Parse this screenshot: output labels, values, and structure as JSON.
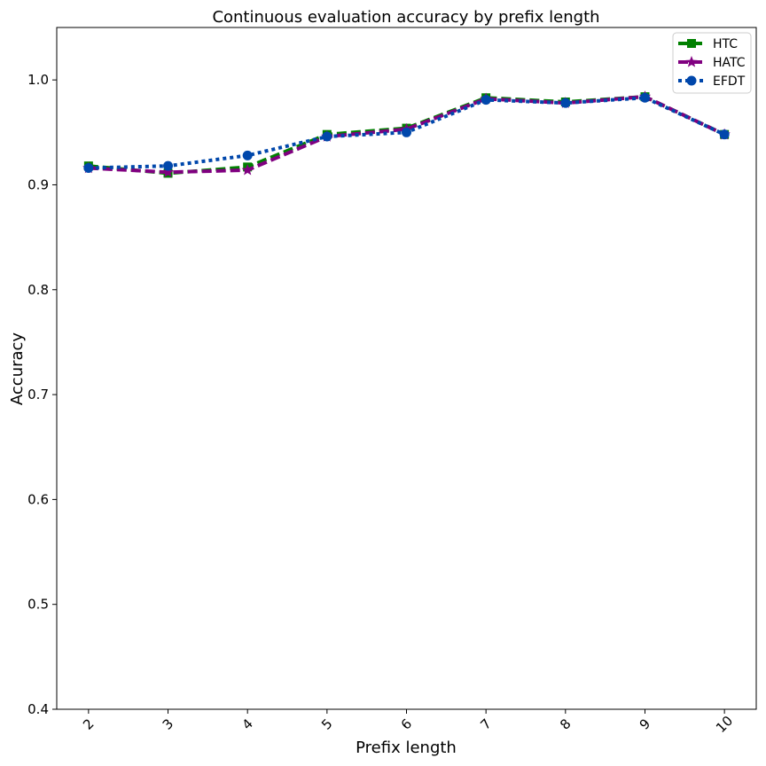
{
  "chart_data": {
    "type": "line",
    "title": "Continuous evaluation accuracy by prefix length",
    "xlabel": "Prefix length",
    "ylabel": "Accuracy",
    "x": [
      2,
      3,
      4,
      5,
      6,
      7,
      8,
      9,
      10
    ],
    "x_tick_labels": [
      "2",
      "3",
      "4",
      "5",
      "6",
      "7",
      "8",
      "9",
      "10"
    ],
    "y_ticks": [
      0.4,
      0.5,
      0.6,
      0.7,
      0.8,
      0.9,
      1.0
    ],
    "y_tick_labels": [
      "0.4",
      "0.5",
      "0.6",
      "0.7",
      "0.8",
      "0.9",
      "1.0"
    ],
    "xlim": [
      1.6,
      10.4
    ],
    "ylim": [
      0.4,
      1.05
    ],
    "grid": false,
    "legend_position": "top-right",
    "series": [
      {
        "name": "HTC",
        "values": [
          0.918,
          0.911,
          0.917,
          0.948,
          0.954,
          0.983,
          0.979,
          0.984,
          0.948
        ],
        "color": "#008000",
        "marker": "square",
        "line_style": "dashed"
      },
      {
        "name": "HATC",
        "values": [
          0.916,
          0.912,
          0.914,
          0.946,
          0.953,
          0.982,
          0.978,
          0.984,
          0.948
        ],
        "color": "#800080",
        "marker": "star",
        "line_style": "dashed"
      },
      {
        "name": "EFDT",
        "values": [
          0.916,
          0.918,
          0.928,
          0.946,
          0.95,
          0.981,
          0.978,
          0.983,
          0.948
        ],
        "color": "#0047AB",
        "marker": "circle",
        "line_style": "dotted"
      }
    ]
  }
}
